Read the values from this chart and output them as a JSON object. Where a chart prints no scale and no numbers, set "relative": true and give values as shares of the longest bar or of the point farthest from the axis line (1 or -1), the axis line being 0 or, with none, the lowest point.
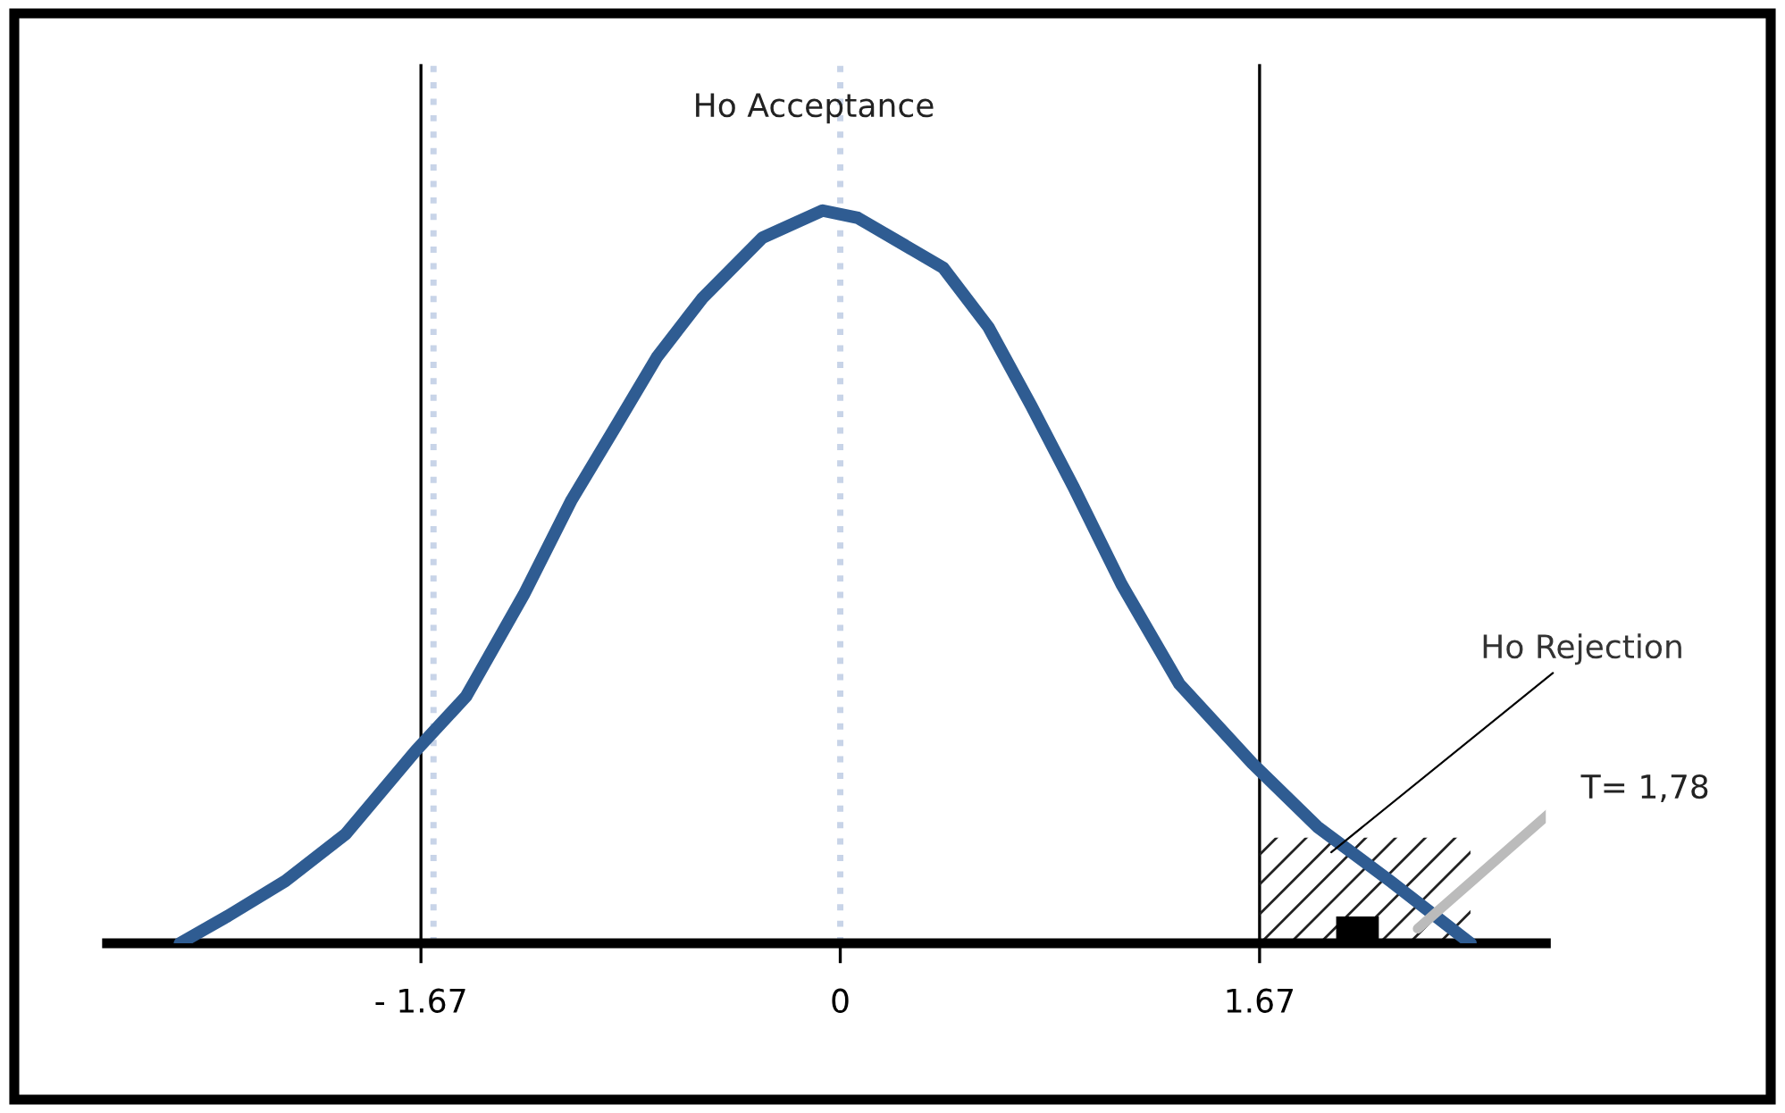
{
  "chart_data": {
    "type": "line",
    "relative": true,
    "x": [
      -2.63,
      -2.44,
      -2.21,
      -1.97,
      -1.69,
      -1.49,
      -1.26,
      -1.07,
      -0.9,
      -0.73,
      -0.55,
      -0.31,
      -0.07,
      0.07,
      0.41,
      0.59,
      0.76,
      0.93,
      1.12,
      1.35,
      1.64,
      1.9,
      2.19,
      2.51
    ],
    "series": [
      {
        "color": "#2f5c92",
        "values": [
          0,
          0.037,
          0.085,
          0.149,
          0.263,
          0.337,
          0.476,
          0.605,
          0.702,
          0.8,
          0.88,
          0.963,
          1,
          0.99,
          0.922,
          0.841,
          0.734,
          0.622,
          0.49,
          0.354,
          0.246,
          0.159,
          0.085,
          0
        ]
      }
    ],
    "xlim": [
      -2.92,
      2.81
    ],
    "xticks": [
      {
        "value": -1.67,
        "label": "- 1.67"
      },
      0,
      1.67
    ],
    "tick_labels": "x",
    "ref_lines": [
      {
        "axis": "x",
        "value": -1.67,
        "color": "#000000",
        "line_style": "solid"
      },
      {
        "axis": "x",
        "value": 1.67,
        "color": "#000000",
        "line_style": "solid"
      },
      {
        "axis": "x",
        "value": -1.62,
        "color": "#c8d4e8",
        "line_style": "dotted"
      },
      {
        "axis": "x",
        "value": 0,
        "color": "#c8d4e8",
        "line_style": "dotted"
      }
    ],
    "bands": [
      {
        "axis": "x",
        "from": 1.67,
        "to": 2.51,
        "label": "Ho Rejection"
      }
    ],
    "annotations": [
      "Ho Acceptance",
      "T= 1,78"
    ],
    "marker": "none",
    "line_style": "solid",
    "grid": false
  }
}
